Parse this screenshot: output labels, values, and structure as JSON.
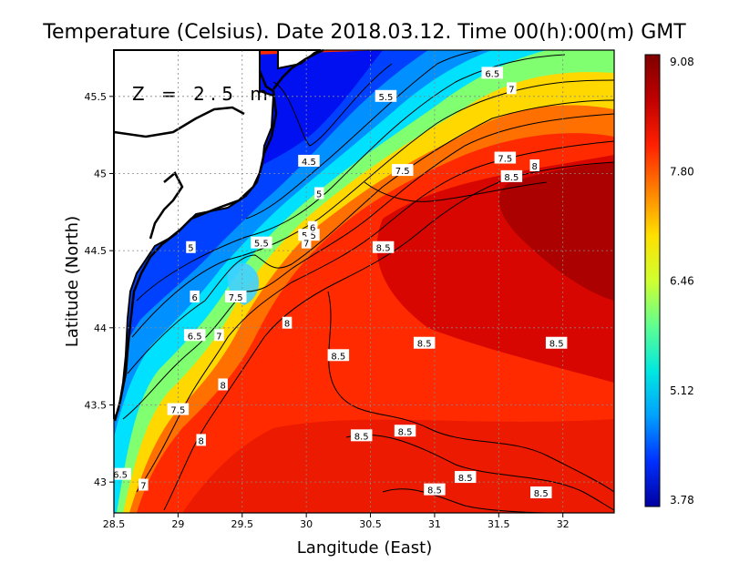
{
  "title": "Temperature (Celsius). Date 2018.03.12. Time 00(h):00(m)  GMT",
  "depth_label": "Z = 2.5 m",
  "xlabel": "Langitude (East)",
  "ylabel": "Latitude (North)",
  "x_ticks": [
    "28.5",
    "29",
    "29.5",
    "30",
    "30.5",
    "31",
    "31.5",
    "32"
  ],
  "y_ticks": [
    "43",
    "43.5",
    "44",
    "44.5",
    "45",
    "45.5"
  ],
  "colorbar": {
    "ticks": [
      "9.08",
      "7.80",
      "6.46",
      "5.12",
      "3.78"
    ],
    "min": 3.78,
    "max": 9.08,
    "colors": [
      "#0000a0",
      "#0030ff",
      "#00a0ff",
      "#00e8e0",
      "#60ff90",
      "#d0ff30",
      "#ffe000",
      "#ff8000",
      "#ff2000",
      "#c00000",
      "#800000"
    ]
  },
  "chart_data": {
    "type": "heatmap",
    "title": "Temperature (Celsius). Date 2018.03.12. Time 00(h):00(m)  GMT",
    "xlabel": "Langitude (East)",
    "ylabel": "Latitude (North)",
    "xlim": [
      28.5,
      32.4
    ],
    "ylim": [
      42.8,
      45.8
    ],
    "value_range": [
      3.78,
      9.08
    ],
    "grid": true,
    "contour_labels": [
      {
        "text": "4.5",
        "lon": 30.02,
        "lat": 45.08
      },
      {
        "text": "5",
        "lon": 30.1,
        "lat": 44.87
      },
      {
        "text": "5.5",
        "lon": 30.62,
        "lat": 45.5
      },
      {
        "text": "5.5",
        "lon": 29.65,
        "lat": 44.55
      },
      {
        "text": "5.5",
        "lon": 30.02,
        "lat": 44.6
      },
      {
        "text": "5",
        "lon": 29.1,
        "lat": 44.52
      },
      {
        "text": "6",
        "lon": 30.05,
        "lat": 44.65
      },
      {
        "text": "6",
        "lon": 29.13,
        "lat": 44.2
      },
      {
        "text": "6.5",
        "lon": 31.45,
        "lat": 45.65
      },
      {
        "text": "6.5",
        "lon": 29.13,
        "lat": 43.95
      },
      {
        "text": "6.5",
        "lon": 28.55,
        "lat": 43.05
      },
      {
        "text": "7",
        "lon": 31.6,
        "lat": 45.55
      },
      {
        "text": "7",
        "lon": 30.0,
        "lat": 44.55
      },
      {
        "text": "7",
        "lon": 29.32,
        "lat": 43.95
      },
      {
        "text": "7",
        "lon": 28.73,
        "lat": 42.98
      },
      {
        "text": "7.5",
        "lon": 31.55,
        "lat": 45.1
      },
      {
        "text": "7.5",
        "lon": 30.75,
        "lat": 45.02
      },
      {
        "text": "7.5",
        "lon": 29.45,
        "lat": 44.2
      },
      {
        "text": "7.5",
        "lon": 29.0,
        "lat": 43.47
      },
      {
        "text": "8",
        "lon": 31.78,
        "lat": 45.05
      },
      {
        "text": "8",
        "lon": 29.85,
        "lat": 44.03
      },
      {
        "text": "8",
        "lon": 29.35,
        "lat": 43.63
      },
      {
        "text": "8",
        "lon": 29.18,
        "lat": 43.27
      },
      {
        "text": "8.5",
        "lon": 31.6,
        "lat": 44.98
      },
      {
        "text": "8.5",
        "lon": 30.6,
        "lat": 44.52
      },
      {
        "text": "8.5",
        "lon": 30.25,
        "lat": 43.82
      },
      {
        "text": "8.5",
        "lon": 30.92,
        "lat": 43.9
      },
      {
        "text": "8.5",
        "lon": 31.95,
        "lat": 43.9
      },
      {
        "text": "8.5",
        "lon": 30.43,
        "lat": 43.3
      },
      {
        "text": "8.5",
        "lon": 30.77,
        "lat": 43.33
      },
      {
        "text": "8.5",
        "lon": 31.24,
        "lat": 43.03
      },
      {
        "text": "8.5",
        "lon": 31.0,
        "lat": 42.95
      },
      {
        "text": "8.5",
        "lon": 31.83,
        "lat": 42.93
      }
    ]
  }
}
